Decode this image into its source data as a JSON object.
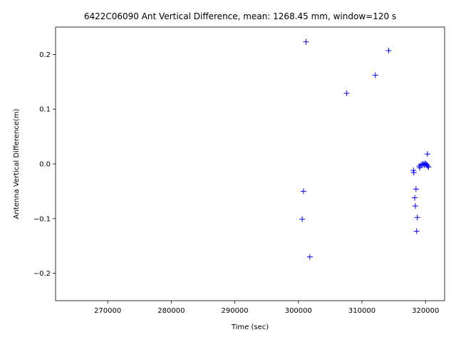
{
  "chart_data": {
    "type": "scatter",
    "title": "6422C06090 Ant Vertical Difference, mean: 1268.45 mm, window=120 s",
    "xlabel": "Time (sec)",
    "ylabel": "Antenna Vertical Difference(m)",
    "xlim": [
      261800,
      323000
    ],
    "ylim": [
      -0.25,
      0.25
    ],
    "xticks": [
      270000,
      280000,
      290000,
      300000,
      310000,
      320000
    ],
    "xtick_labels": [
      "270000",
      "280000",
      "290000",
      "300000",
      "310000",
      "320000"
    ],
    "yticks": [
      -0.2,
      -0.1,
      0.0,
      0.1,
      0.2
    ],
    "ytick_labels": [
      "−0.2",
      "−0.1",
      "0.0",
      "0.1",
      "0.2"
    ],
    "grid": false,
    "marker": "+",
    "color": "#0000ff",
    "series": [
      {
        "points": [
          [
            301200,
            0.223
          ],
          [
            314200,
            0.207
          ],
          [
            312100,
            0.162
          ],
          [
            307600,
            0.129
          ],
          [
            320300,
            0.018
          ],
          [
            318100,
            -0.012
          ],
          [
            318150,
            -0.016
          ],
          [
            319000,
            -0.004
          ],
          [
            319100,
            -0.007
          ],
          [
            319300,
            -0.002
          ],
          [
            319500,
            -0.001
          ],
          [
            319650,
            0.0
          ],
          [
            319800,
            -0.002
          ],
          [
            319950,
            0.001
          ],
          [
            320100,
            -0.001
          ],
          [
            320200,
            -0.002
          ],
          [
            320350,
            -0.004
          ],
          [
            320450,
            -0.006
          ],
          [
            318500,
            -0.046
          ],
          [
            300800,
            -0.05
          ],
          [
            318300,
            -0.062
          ],
          [
            318400,
            -0.077
          ],
          [
            318700,
            -0.098
          ],
          [
            300600,
            -0.101
          ],
          [
            318600,
            -0.123
          ],
          [
            301800,
            -0.17
          ]
        ]
      }
    ]
  }
}
